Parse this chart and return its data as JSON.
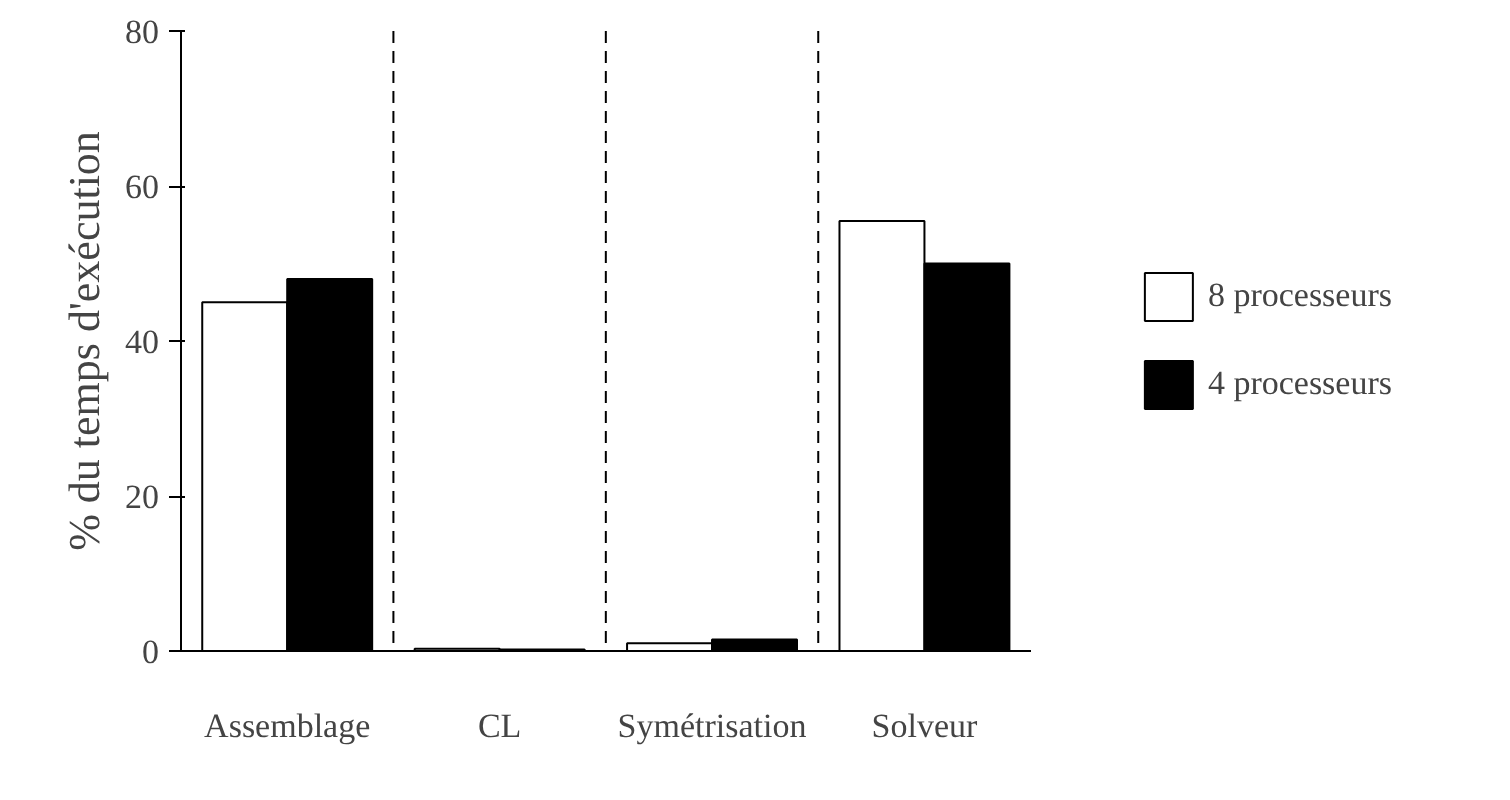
{
  "chart_data": {
    "type": "bar",
    "ylabel": "% du temps d'exécution",
    "categories": [
      "Assemblage",
      "CL",
      "Symétrisation",
      "Solveur"
    ],
    "series": [
      {
        "name": "8 processeurs",
        "color": "#ffffff",
        "values": [
          45,
          0.3,
          1,
          55.5
        ]
      },
      {
        "name": "4 processeurs",
        "color": "#000000",
        "values": [
          48,
          0.2,
          1.5,
          50
        ]
      }
    ],
    "ylim": [
      0,
      80
    ],
    "yticks": [
      0,
      20,
      40,
      60,
      80
    ],
    "grid": false,
    "legend": "right"
  }
}
